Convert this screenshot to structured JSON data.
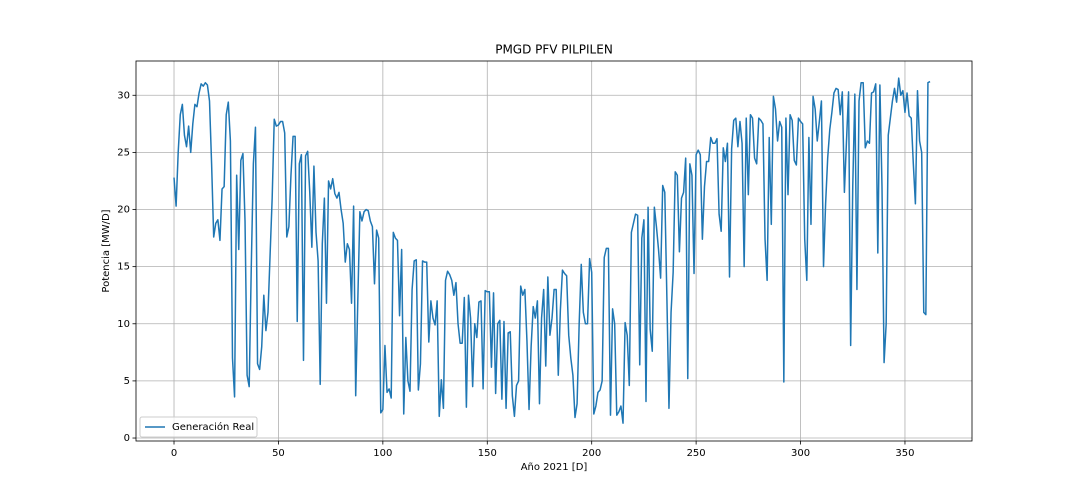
{
  "chart_data": {
    "type": "line",
    "title": "PMGD PFV PILPILEN",
    "x_label": "Año 2021 [D]",
    "y_label": "Potencia [MW/D]",
    "x": [
      0,
      1,
      2,
      3,
      4,
      5,
      6,
      7,
      8,
      9,
      10,
      11,
      12,
      13,
      14,
      15,
      16,
      17,
      18,
      19,
      20,
      21,
      22,
      23,
      24,
      25,
      26,
      27,
      28,
      29,
      30,
      31,
      32,
      33,
      34,
      35,
      36,
      37,
      38,
      39,
      40,
      41,
      42,
      43,
      44,
      45,
      46,
      47,
      48,
      49,
      50,
      51,
      52,
      53,
      54,
      55,
      56,
      57,
      58,
      59,
      60,
      61,
      62,
      63,
      64,
      65,
      66,
      67,
      68,
      69,
      70,
      71,
      72,
      73,
      74,
      75,
      76,
      77,
      78,
      79,
      80,
      81,
      82,
      83,
      84,
      85,
      86,
      87,
      88,
      89,
      90,
      91,
      92,
      93,
      94,
      95,
      96,
      97,
      98,
      99,
      100,
      101,
      102,
      103,
      104,
      105,
      106,
      107,
      108,
      109,
      110,
      111,
      112,
      113,
      114,
      115,
      116,
      117,
      118,
      119,
      120,
      121,
      122,
      123,
      124,
      125,
      126,
      127,
      128,
      129,
      130,
      131,
      132,
      133,
      134,
      135,
      136,
      137,
      138,
      139,
      140,
      141,
      142,
      143,
      144,
      145,
      146,
      147,
      148,
      149,
      150,
      151,
      152,
      153,
      154,
      155,
      156,
      157,
      158,
      159,
      160,
      161,
      162,
      163,
      164,
      165,
      166,
      167,
      168,
      169,
      170,
      171,
      172,
      173,
      174,
      175,
      176,
      177,
      178,
      179,
      180,
      181,
      182,
      183,
      184,
      185,
      186,
      187,
      188,
      189,
      190,
      191,
      192,
      193,
      194,
      195,
      196,
      197,
      198,
      199,
      200,
      201,
      202,
      203,
      204,
      205,
      206,
      207,
      208,
      209,
      210,
      211,
      212,
      213,
      214,
      215,
      216,
      217,
      218,
      219,
      220,
      221,
      222,
      223,
      224,
      225,
      226,
      227,
      228,
      229,
      230,
      231,
      232,
      233,
      234,
      235,
      236,
      237,
      238,
      239,
      240,
      241,
      242,
      243,
      244,
      245,
      246,
      247,
      248,
      249,
      250,
      251,
      252,
      253,
      254,
      255,
      256,
      257,
      258,
      259,
      260,
      261,
      262,
      263,
      264,
      265,
      266,
      267,
      268,
      269,
      270,
      271,
      272,
      273,
      274,
      275,
      276,
      277,
      278,
      279,
      280,
      281,
      282,
      283,
      284,
      285,
      286,
      287,
      288,
      289,
      290,
      291,
      292,
      293,
      294,
      295,
      296,
      297,
      298,
      299,
      300,
      301,
      302,
      303,
      304,
      305,
      306,
      307,
      308,
      309,
      310,
      311,
      312,
      313,
      314,
      315,
      316,
      317,
      318,
      319,
      320,
      321,
      322,
      323,
      324,
      325,
      326,
      327,
      328,
      329,
      330,
      331,
      332,
      333,
      334,
      335,
      336,
      337,
      338,
      339,
      340,
      341,
      342,
      343,
      344,
      345,
      346,
      347,
      348,
      349,
      350,
      351,
      352,
      353,
      354,
      355,
      356,
      357,
      358,
      359,
      360,
      361,
      362
    ],
    "series": [
      {
        "name": "Generación Real",
        "color": "#1f77b4",
        "values": [
          22.8,
          20.3,
          25,
          28.3,
          29.2,
          26.5,
          25.5,
          27.3,
          25,
          27.5,
          29.2,
          29,
          30.2,
          31,
          30.8,
          31.1,
          30.9,
          29.5,
          24,
          17.6,
          18.8,
          19.1,
          17.3,
          21.8,
          22,
          28.3,
          29.4,
          26,
          7,
          3.6,
          23,
          16.5,
          24.3,
          24.9,
          19,
          5.5,
          4.5,
          15,
          24,
          27.2,
          6.5,
          6,
          8,
          12.5,
          9.4,
          11,
          16,
          21,
          27.9,
          27.3,
          27.4,
          27.7,
          27.7,
          26.7,
          17.6,
          18.5,
          23,
          26.4,
          26.4,
          10.2,
          24,
          24.8,
          6.8,
          24.7,
          25.1,
          21.5,
          16.7,
          23.8,
          18,
          15.5,
          4.7,
          17,
          21,
          11.8,
          22.5,
          21.8,
          22.7,
          21.4,
          21,
          21.5,
          20,
          18.8,
          15.4,
          17,
          16.5,
          11.8,
          20.3,
          3.7,
          12,
          19.8,
          19,
          19.8,
          20,
          19.9,
          19,
          18.5,
          13.5,
          18.2,
          17.5,
          2.2,
          2.5,
          8.1,
          4,
          4.3,
          3.5,
          18,
          17.5,
          17.3,
          10.7,
          16.5,
          2.1,
          8.8,
          5,
          4.1,
          13,
          15.5,
          15.6,
          4.2,
          6.5,
          15.5,
          15.4,
          15.4,
          8.4,
          12,
          10.5,
          9.9,
          12,
          1.9,
          5.1,
          2.6,
          13.8,
          14.6,
          14.3,
          13.8,
          12.5,
          13.6,
          10,
          8.3,
          8.3,
          12.3,
          2.7,
          12.5,
          10.5,
          4.5,
          10,
          8.8,
          11.9,
          12,
          4.3,
          12.9,
          12.8,
          12.8,
          6.2,
          12.7,
          3.9,
          10,
          10.3,
          3.4,
          10.2,
          2.6,
          9.2,
          9.3,
          3.7,
          1.9,
          4.6,
          5,
          13.3,
          12.5,
          13,
          8.5,
          2.5,
          8,
          11.5,
          10.5,
          12,
          3,
          10.5,
          13,
          6.3,
          14.1,
          9,
          10.5,
          13,
          13,
          5.5,
          11.2,
          14.7,
          14.4,
          14.2,
          9,
          7,
          5.5,
          1.8,
          3,
          10,
          15.2,
          11,
          10,
          10,
          15.7,
          14.5,
          2.1,
          2.8,
          4,
          4.2,
          5,
          15.8,
          16.6,
          16.6,
          2,
          11.3,
          10,
          2,
          2.3,
          2.8,
          1.3,
          10.1,
          9,
          4.6,
          18,
          18.8,
          19.6,
          19.5,
          6.4,
          17.5,
          19.1,
          3.2,
          20.2,
          9.5,
          7.6,
          20.2,
          18.5,
          16.5,
          14,
          22.1,
          21.5,
          12.3,
          2.6,
          11,
          14.5,
          23.3,
          23,
          16.3,
          21,
          21.5,
          24.5,
          5.2,
          24,
          23,
          14.4,
          24.8,
          25.2,
          24.8,
          17.4,
          22,
          24.2,
          24.2,
          26.3,
          25.8,
          25.8,
          26.2,
          19.6,
          18.1,
          25.4,
          24.2,
          25.8,
          14.1,
          25.3,
          27.8,
          28,
          25.5,
          27.7,
          25.8,
          15,
          28,
          21.3,
          28.3,
          28,
          24.5,
          24,
          28,
          27.8,
          27.5,
          17.4,
          13.8,
          26.3,
          18.7,
          29.9,
          28.8,
          26,
          27.7,
          27.2,
          4.9,
          28,
          21.3,
          28.3,
          27.8,
          24.3,
          23.9,
          28,
          27.7,
          27.5,
          17.4,
          13.8,
          26.3,
          18.7,
          29.9,
          28.8,
          26,
          27.7,
          29.5,
          15,
          20.5,
          24.5,
          27,
          28.5,
          30.2,
          30.6,
          30.5,
          28.3,
          30.3,
          21.5,
          26,
          30.3,
          8.1,
          22,
          30.1,
          13,
          29.5,
          31.1,
          31.1,
          25.4,
          26,
          25.8,
          30.2,
          30.3,
          31,
          16.2,
          30.9,
          22,
          6.6,
          10,
          26.5,
          28,
          29.5,
          30.6,
          29.4,
          31.5,
          30,
          30.4,
          28.5,
          30.2,
          28.2,
          28,
          24,
          20.5,
          30.4,
          26,
          25,
          11,
          10.8,
          31.1,
          31.2
        ]
      }
    ],
    "xlim": [
      -18.2,
      382.1
    ],
    "ylim": [
      -0.26,
      33.0
    ],
    "xticks": [
      0,
      50,
      100,
      150,
      200,
      250,
      300,
      350
    ],
    "yticks": [
      0,
      5,
      10,
      15,
      20,
      25,
      30
    ],
    "grid": true,
    "legend_position": "lower left"
  }
}
